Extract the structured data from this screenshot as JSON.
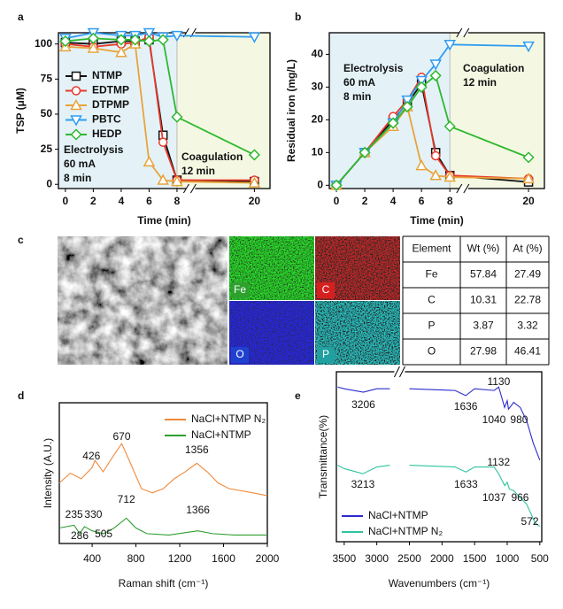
{
  "chart_data": [
    {
      "type": "line",
      "label": "a",
      "xlabel": "Time (min)",
      "ylabel": "TSP (μM)",
      "x": [
        0,
        2,
        4,
        5,
        6,
        7,
        8,
        20
      ],
      "xlim": [
        -0.5,
        20.4
      ],
      "x_break": [
        8.6,
        18.5
      ],
      "xticks": [
        0,
        2,
        4,
        6,
        8,
        20
      ],
      "ylim": [
        -3,
        108
      ],
      "yticks": [
        0,
        25,
        50,
        75,
        100
      ],
      "legend": "upper left",
      "regions": [
        {
          "label": [
            "Electrolysis",
            "60 mA",
            "8 min"
          ],
          "xlim": [
            -0.5,
            8
          ],
          "color": "#e4f2f8"
        },
        {
          "label": [
            "Coagulation",
            "12 min"
          ],
          "xlim": [
            8,
            20.4
          ],
          "color": "#f4f8e2"
        }
      ],
      "series": [
        {
          "name": "NTMP",
          "color": "#111111",
          "marker": "square",
          "values": [
            101,
            100,
            102,
            102,
            103,
            35,
            3,
            2
          ]
        },
        {
          "name": "EDTMP",
          "color": "#e8392b",
          "marker": "circle",
          "values": [
            100,
            98,
            100,
            101,
            105,
            30,
            3,
            3
          ]
        },
        {
          "name": "DTPMP",
          "color": "#e8a33a",
          "marker": "triangle-up",
          "values": [
            98,
            97,
            94,
            100,
            16,
            3,
            2,
            1
          ]
        },
        {
          "name": "PBTC",
          "color": "#2f9cf0",
          "marker": "triangle-down",
          "values": [
            104,
            108,
            106,
            106,
            108,
            105,
            106,
            105
          ]
        },
        {
          "name": "HEDP",
          "color": "#2eb82e",
          "marker": "diamond",
          "values": [
            102,
            104,
            103,
            103,
            102,
            103,
            48,
            21
          ]
        }
      ]
    },
    {
      "type": "line",
      "label": "b",
      "xlabel": "Time (min)",
      "ylabel": "Residual iron (mg/L)",
      "x": [
        0,
        2,
        4,
        5,
        6,
        7,
        8,
        20
      ],
      "xlim": [
        -0.5,
        20.4
      ],
      "x_break": [
        8.6,
        18.5
      ],
      "xticks": [
        0,
        2,
        4,
        6,
        8,
        20
      ],
      "ylim": [
        -1,
        46.6
      ],
      "yticks": [
        0,
        10,
        20,
        30,
        40
      ],
      "regions": [
        {
          "label": [
            "Electrolysis",
            "60 mA",
            "8 min"
          ],
          "xlim": [
            -0.5,
            8
          ],
          "color": "#e4f2f8"
        },
        {
          "label": [
            "Coagulation",
            "12 min"
          ],
          "xlim": [
            8,
            20.4
          ],
          "color": "#f4f8e2"
        }
      ],
      "series": [
        {
          "color": "#111111",
          "marker": "square",
          "values": [
            0,
            10,
            20,
            25,
            31,
            10,
            3,
            1
          ]
        },
        {
          "color": "#e8392b",
          "marker": "circle",
          "values": [
            0,
            10,
            21,
            26,
            33,
            9,
            3,
            2
          ]
        },
        {
          "color": "#e8a33a",
          "marker": "triangle-up",
          "values": [
            0,
            10,
            18,
            24,
            6,
            3,
            2.5,
            2
          ]
        },
        {
          "color": "#2f9cf0",
          "marker": "triangle-down",
          "values": [
            0,
            10,
            19,
            26,
            32,
            37,
            43,
            42.5
          ]
        },
        {
          "color": "#2eb82e",
          "marker": "diamond",
          "values": [
            0,
            10,
            19,
            24,
            30,
            33.5,
            18,
            8.5
          ]
        }
      ]
    },
    {
      "type": "spectrum",
      "label": "d",
      "xlabel": "Raman shift (cm⁻¹)",
      "ylabel": "Intensity (A.U.)",
      "xlim": [
        100,
        2000
      ],
      "xticks": [
        400,
        800,
        1200,
        1600,
        2000
      ],
      "ylim": [
        0,
        100
      ],
      "legend": "upper right",
      "annotations": [
        426,
        670,
        1356,
        235,
        330,
        712,
        1366,
        286,
        505
      ],
      "series": [
        {
          "name": "NaCl+NTMP N₂",
          "color": "#f08a3c",
          "x": [
            100,
            200,
            300,
            400,
            426,
            500,
            600,
            670,
            750,
            850,
            950,
            1050,
            1150,
            1250,
            1356,
            1450,
            1550,
            1650,
            1800,
            2000
          ],
          "values": [
            43,
            50,
            46,
            54,
            59,
            51,
            63,
            71,
            57,
            39,
            36,
            39,
            46,
            51,
            57,
            51,
            43,
            39,
            37,
            34
          ]
        },
        {
          "name": "NaCl+NTMP",
          "color": "#2e9e2e",
          "x": [
            100,
            235,
            286,
            330,
            400,
            505,
            600,
            712,
            800,
            900,
            1100,
            1366,
            1500,
            1700,
            2000
          ],
          "values": [
            11,
            13,
            7,
            12,
            9,
            7,
            11,
            18,
            11,
            7,
            6,
            9,
            7,
            6,
            6
          ]
        }
      ]
    },
    {
      "type": "spectrum",
      "label": "e",
      "xlabel": "Wavenumbers (cm⁻¹)",
      "ylabel": "Transmittance(%)",
      "xlim": [
        3620,
        470
      ],
      "xticks": [
        3500,
        3000,
        2500,
        2000,
        1500,
        1000,
        500
      ],
      "ylim": [
        0,
        100
      ],
      "legend": "lower left",
      "annotations": [
        1130,
        3206,
        1636,
        1040,
        980,
        1132,
        3213,
        1633,
        1037,
        966,
        572
      ],
      "series": [
        {
          "name": "NaCl+NTMP",
          "color": "#2b2bd1",
          "x": [
            3600,
            3500,
            3206,
            3000,
            2800,
            2650,
            2500,
            1800,
            1636,
            1500,
            1200,
            1130,
            1040,
            1000,
            980,
            900,
            800,
            700,
            600,
            500
          ],
          "values": [
            91,
            90,
            88,
            90,
            90,
            null,
            90,
            89,
            86,
            90,
            89,
            91,
            79,
            83,
            78,
            82,
            79,
            71,
            58,
            48
          ]
        },
        {
          "name": "NaCl+NTMP N₂",
          "color": "#2ec4a0",
          "x": [
            3600,
            3500,
            3213,
            3000,
            2800,
            2650,
            2500,
            1800,
            1633,
            1500,
            1200,
            1132,
            1037,
            1000,
            966,
            900,
            800,
            700,
            572,
            500
          ],
          "values": [
            45,
            43,
            40,
            44,
            45,
            null,
            45,
            44,
            41,
            44,
            44,
            40,
            33,
            35,
            31,
            30,
            26,
            22,
            11,
            9
          ]
        }
      ]
    }
  ],
  "figure_c": {
    "label": "c",
    "map_labels": [
      "Fe",
      "C",
      "O",
      "P"
    ],
    "table": {
      "header": [
        "Element",
        "Wt (%)",
        "At (%)"
      ],
      "rows": [
        [
          "Fe",
          "57.84",
          "27.49"
        ],
        [
          "C",
          "10.31",
          "22.78"
        ],
        [
          "P",
          "3.87",
          "3.32"
        ],
        [
          "O",
          "27.98",
          "46.41"
        ]
      ]
    }
  }
}
